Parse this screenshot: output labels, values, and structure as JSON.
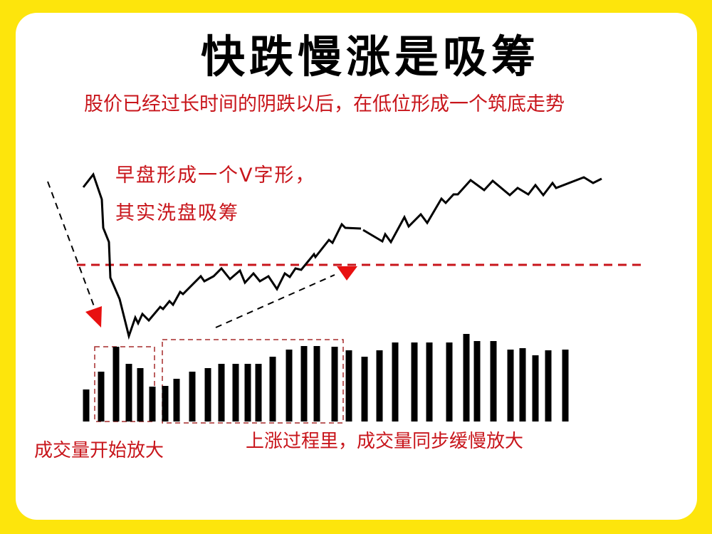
{
  "title": "快跌慢涨是吸筹",
  "subtitle": "股价已经过长时间的阴跌以后，在低位形成一个筑底走势",
  "annotations": {
    "v_shape_line1": "早盘形成一个V字形，",
    "v_shape_line2": "其实洗盘吸筹",
    "volume_start": "成交量开始放大",
    "volume_rise": "上涨过程里，成交量同步缓慢放大"
  },
  "colors": {
    "background": "#FDE50C",
    "card": "#FFFFFF",
    "accent_red": "#C8151B",
    "line": "#000000"
  },
  "chart_data": {
    "type": "line+bar",
    "volume": [
      45,
      70,
      105,
      81,
      75,
      49,
      50,
      60,
      70,
      75,
      81,
      81,
      81,
      81,
      91,
      101,
      106,
      106,
      105,
      100,
      91,
      100,
      111,
      111,
      111,
      111,
      123,
      113,
      113,
      101,
      103,
      93,
      100,
      101
    ]
  }
}
